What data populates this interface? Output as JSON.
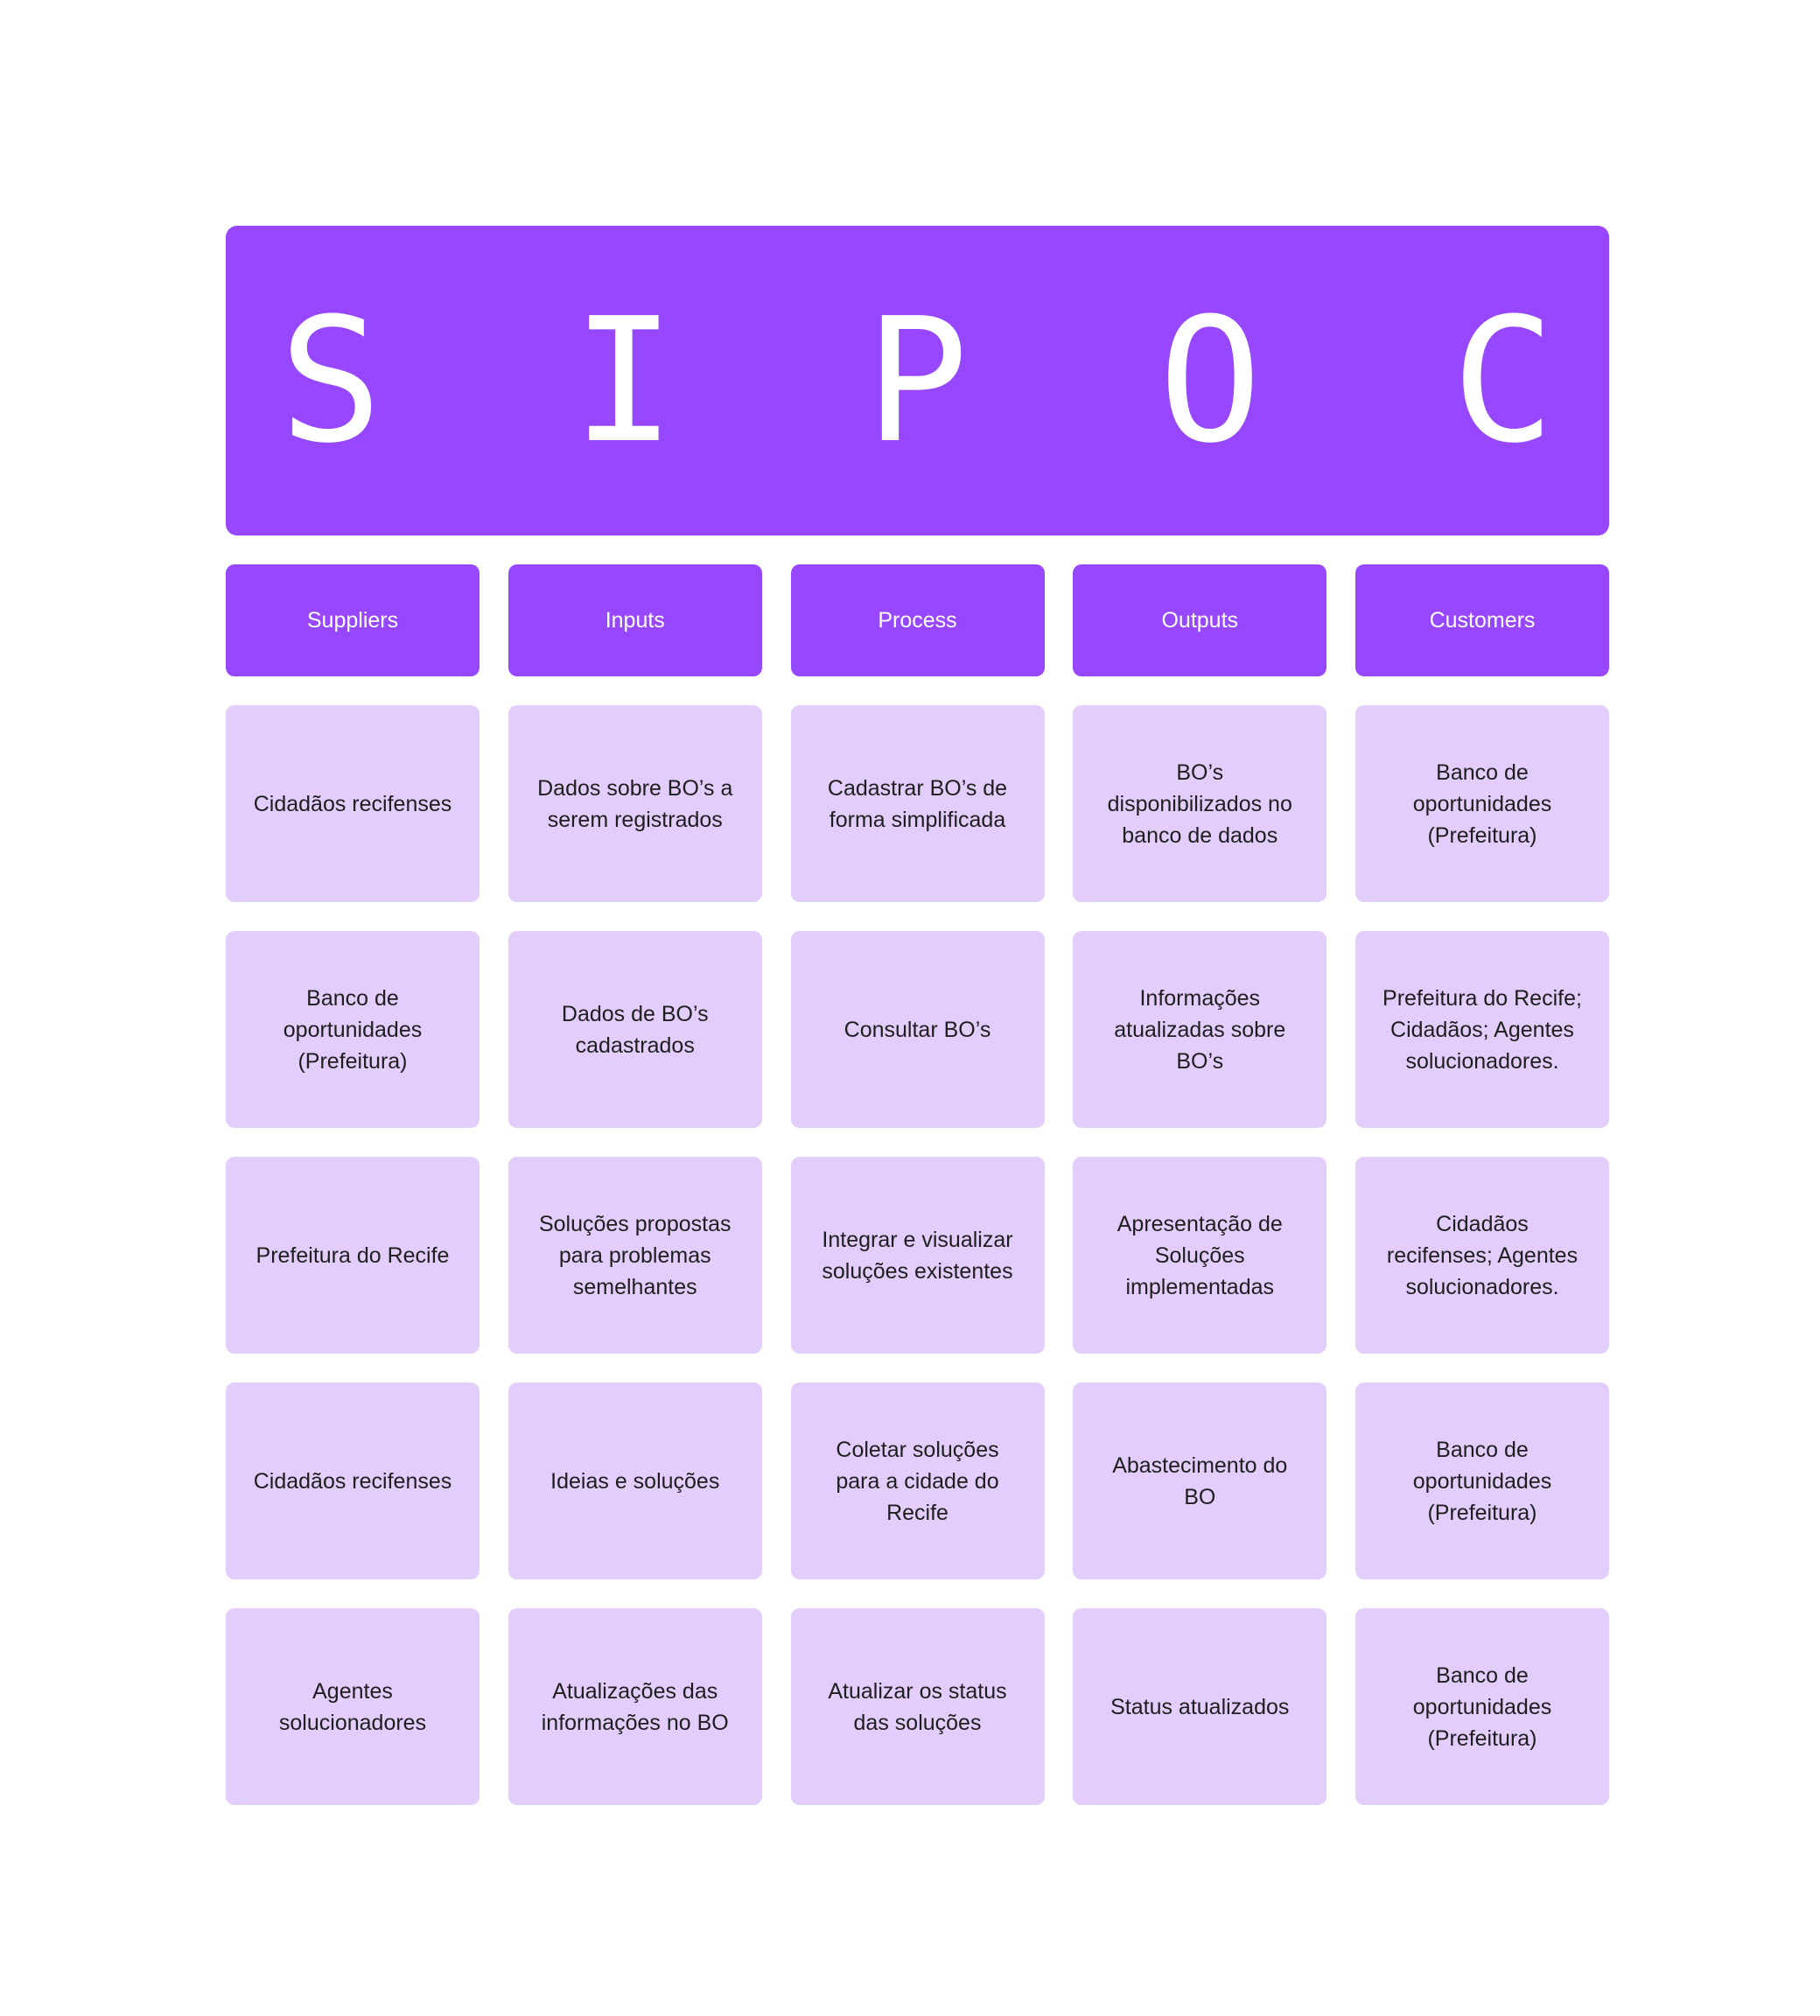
{
  "banner": {
    "letters": [
      "S",
      "I",
      "P",
      "O",
      "C"
    ]
  },
  "columns": [
    "Suppliers",
    "Inputs",
    "Process",
    "Outputs",
    "Customers"
  ],
  "rows": [
    [
      "Cidadãos recifenses",
      "Dados sobre BO’s a serem registrados",
      "Cadastrar BO’s de forma simplificada",
      "BO’s disponibilizados no banco de dados",
      "Banco de oportunidades (Prefeitura)"
    ],
    [
      "Banco de oportunidades (Prefeitura)",
      "Dados de BO’s cadastrados",
      "Consultar BO’s",
      "Informações atualizadas sobre BO’s",
      "Prefeitura do Recife; Cidadãos; Agentes solucionadores."
    ],
    [
      "Prefeitura do Recife",
      "Soluções propostas para problemas semelhantes",
      "Integrar e visualizar soluções existentes",
      "Apresentação de Soluções implementadas",
      "Cidadãos recifenses; Agentes solucionadores."
    ],
    [
      "Cidadãos recifenses",
      "Ideias e soluções",
      "Coletar soluções para a cidade do Recife",
      "Abastecimento do BO",
      "Banco de oportunidades (Prefeitura)"
    ],
    [
      "Agentes solucionadores",
      "Atualizações das informações no BO",
      "Atualizar os status das soluções",
      "Status atualizados",
      "Banco de oportunidades (Prefeitura)"
    ]
  ],
  "colors": {
    "accent": "#9747ff",
    "cell_background": "#e2cdfc",
    "text_dark": "#1e1e1e",
    "text_light": "#ffffff"
  }
}
